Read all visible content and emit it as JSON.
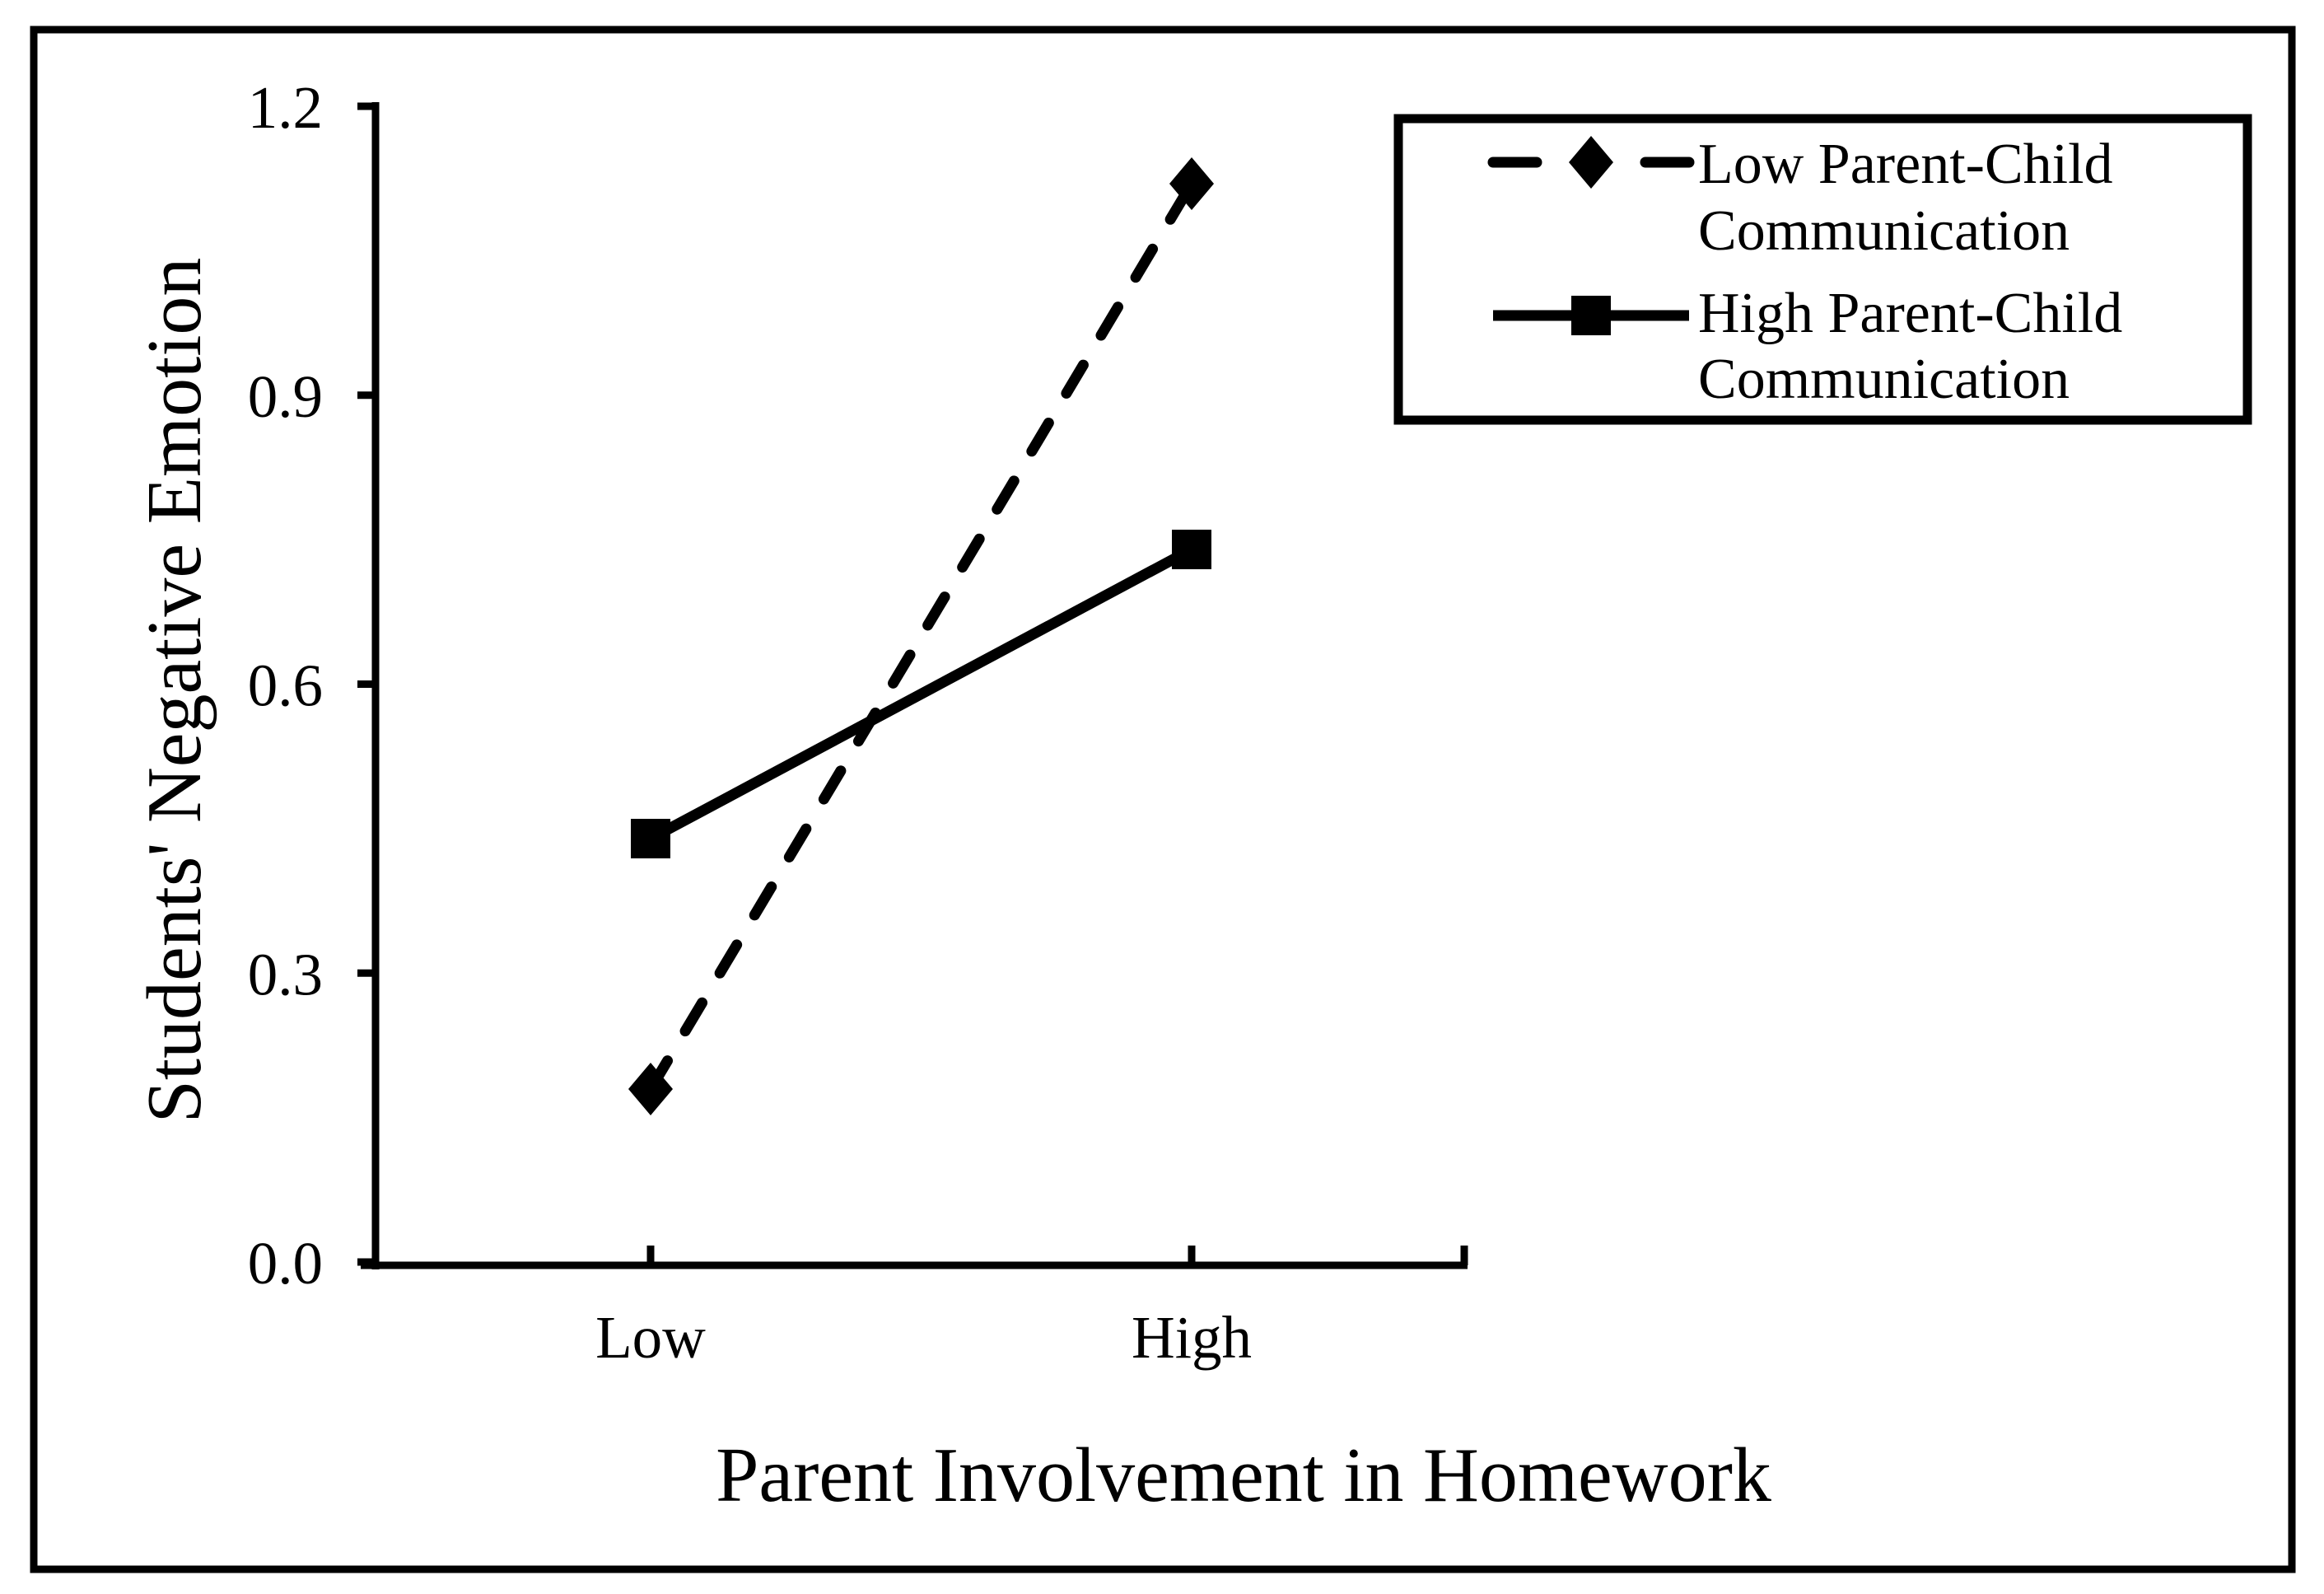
{
  "figure": {
    "background": "#ffffff",
    "foreground": "#000000",
    "border_color": "#000000"
  },
  "chart_data": {
    "type": "line",
    "title": "",
    "xlabel": "Parent Involvement in Homework",
    "ylabel": "Students' Negative Emotion",
    "categories": [
      "Low",
      "High"
    ],
    "y_tick_labels": [
      "0.0",
      "0.3",
      "0.6",
      "0.9",
      "1.2"
    ],
    "ylim": [
      0,
      1.2
    ],
    "grid": false,
    "legend_position": "top-right",
    "series": [
      {
        "name": "Low Parent-Child Communication",
        "legend_lines": [
          "Low Parent-Child",
          "Communication"
        ],
        "values": [
          0.18,
          1.12
        ],
        "marker": "diamond",
        "line_style": "dashed",
        "color": "#000000"
      },
      {
        "name": "High Parent-Child Communication",
        "legend_lines": [
          "High Parent-Child",
          "Communication"
        ],
        "values": [
          0.44,
          0.74
        ],
        "marker": "square",
        "line_style": "solid",
        "color": "#000000"
      }
    ]
  }
}
